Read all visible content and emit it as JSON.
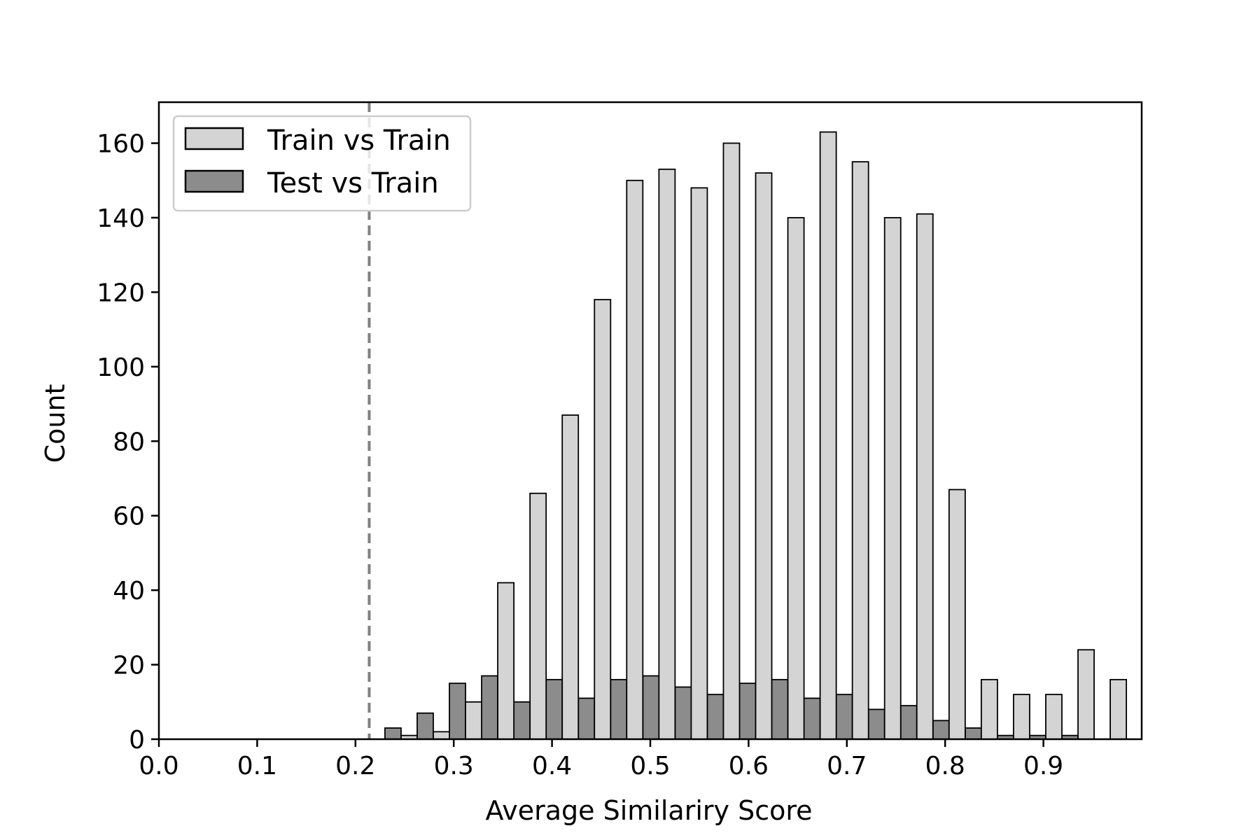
{
  "chart_data": {
    "type": "bar",
    "title": "",
    "xlabel": "Average Similariry Score",
    "ylabel": "Count",
    "xlim": [
      0.0,
      1.0
    ],
    "ylim": [
      0,
      171
    ],
    "xticks": [
      "0.0",
      "0.1",
      "0.2",
      "0.3",
      "0.4",
      "0.5",
      "0.6",
      "0.7",
      "0.8",
      "0.9"
    ],
    "yticks": [
      "0",
      "20",
      "40",
      "60",
      "80",
      "100",
      "120",
      "140",
      "160"
    ],
    "grid": false,
    "legend_position": "top-left",
    "threshold_line": {
      "x": 0.214,
      "style": "dashed",
      "color": "#808080"
    },
    "bin_start": 0.23,
    "bin_width": 0.0328,
    "series": [
      {
        "name": "Test vs Train",
        "color": "#8c8c8c",
        "values": [
          3,
          7,
          15,
          17,
          10,
          16,
          11,
          16,
          17,
          14,
          12,
          15,
          16,
          11,
          12,
          8,
          9,
          5,
          3,
          1,
          1,
          1,
          0
        ]
      },
      {
        "name": "Train vs Train",
        "color": "#d4d4d4",
        "values": [
          1,
          2,
          10,
          42,
          66,
          87,
          118,
          150,
          153,
          148,
          160,
          152,
          140,
          163,
          155,
          140,
          141,
          67,
          16,
          12,
          12,
          24,
          16
        ]
      }
    ]
  },
  "legend": {
    "items": [
      {
        "label": "Train vs Train",
        "color": "#d4d4d4"
      },
      {
        "label": "Test vs Train",
        "color": "#8c8c8c"
      }
    ]
  }
}
